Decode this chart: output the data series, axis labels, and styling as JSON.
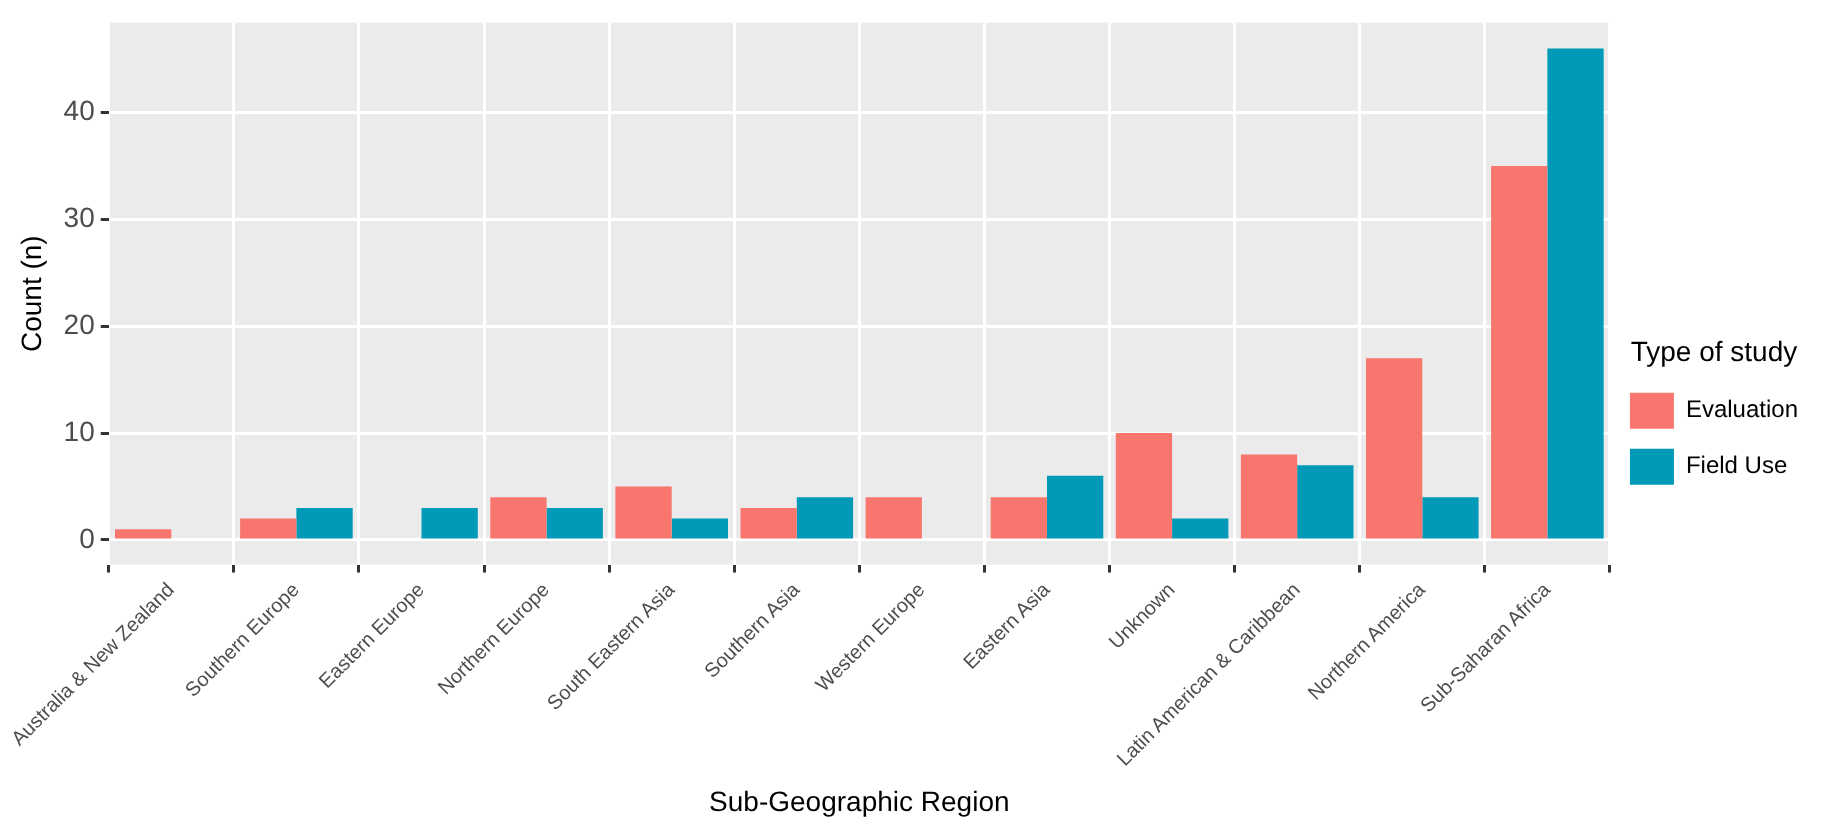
{
  "chart_data": {
    "type": "bar",
    "xlabel": "Sub-Geographic Region",
    "ylabel": "Count (n)",
    "legend_title": "Type of study",
    "categories": [
      "Australia & New Zealand",
      "Southern Europe",
      "Eastern Europe",
      "Northern Europe",
      "South Eastern Asia",
      "Southern Asia",
      "Western Europe",
      "Eastern Asia",
      "Unknown",
      "Latin American & Caribbean",
      "Northern America",
      "Sub-Saharan Africa"
    ],
    "series": [
      {
        "name": "Evaluation",
        "color": "#f8766d",
        "values": [
          1,
          2,
          null,
          4,
          5,
          3,
          4,
          4,
          10,
          8,
          17,
          35
        ]
      },
      {
        "name": "Field Use",
        "color": "#0099b8",
        "values": [
          null,
          3,
          3,
          3,
          2,
          4,
          null,
          6,
          2,
          7,
          4,
          46
        ]
      }
    ],
    "ylim": [
      -2.3,
      48.4
    ],
    "yticks": [
      0,
      10,
      20,
      30,
      40
    ],
    "grid": true,
    "legend": "right"
  }
}
